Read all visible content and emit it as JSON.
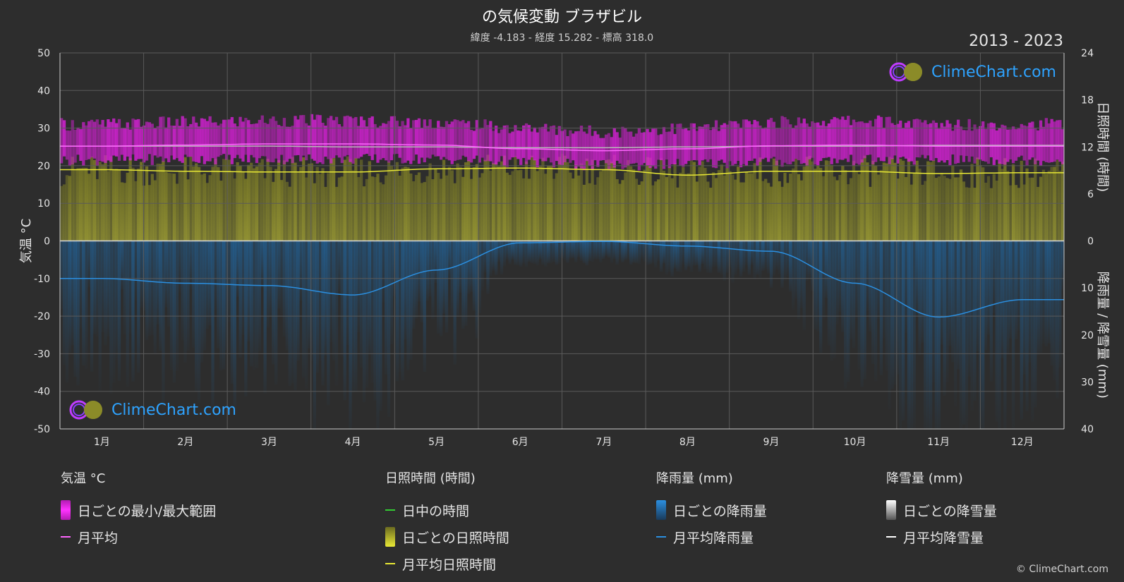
{
  "title": "の気候変動 ブラザビル",
  "subtitle": "緯度 -4.183 - 経度 15.282 - 標高 318.0",
  "years": "2013 - 2023",
  "logo_text": "ClimeChart.com",
  "copyright": "© ClimeChart.com",
  "legend": {
    "temperature": {
      "header": "気温 °C",
      "items": [
        "日ごとの最小/最大範囲",
        "月平均"
      ]
    },
    "sunshine": {
      "header": "日照時間 (時間)",
      "items": [
        "日中の時間",
        "日ごとの日照時間",
        "月平均日照時間"
      ]
    },
    "rain": {
      "header": "降雨量 (mm)",
      "items": [
        "日ごとの降雨量",
        "月平均降雨量"
      ]
    },
    "snow": {
      "header": "降雪量 (mm)",
      "items": [
        "日ごとの降雪量",
        "月平均降雪量"
      ]
    }
  },
  "colors": {
    "background": "#2d2d2d",
    "temp_range": "#e020e0",
    "temp_mean": "#ff66ff",
    "daylight": "#33cc33",
    "sunshine_fill": "#8f8f2a",
    "sunshine_mean": "#e8e835",
    "rain_fill": "#1f6fb2",
    "rain_mean": "#2b8fe0",
    "snow": "#ffffff"
  },
  "chart_data": {
    "type": "line",
    "months": [
      "1月",
      "2月",
      "3月",
      "4月",
      "5月",
      "6月",
      "7月",
      "8月",
      "9月",
      "10月",
      "11月",
      "12月"
    ],
    "axes": {
      "left": {
        "label": "気温 °C",
        "ylim": [
          -50,
          50
        ],
        "ticks": [
          "50",
          "40",
          "30",
          "20",
          "10",
          "0",
          "-10",
          "-20",
          "-30",
          "-40",
          "-50"
        ]
      },
      "right_top": {
        "label": "日照時間 (時間)",
        "ylim": [
          0,
          24
        ],
        "ticks": [
          "24",
          "18",
          "12",
          "6",
          "0"
        ]
      },
      "right_bottom": {
        "label": "降雨量 / 降雪量 (mm)",
        "ylim": [
          0,
          40
        ],
        "ticks": [
          "0",
          "10",
          "20",
          "30",
          "40"
        ]
      }
    },
    "grid": true,
    "series": [
      {
        "name": "日ごとの最小/最大範囲",
        "kind": "band",
        "min": [
          21.5,
          21.8,
          21.8,
          21.8,
          21.8,
          21,
          20,
          20.5,
          21,
          21.5,
          21.5,
          21.5
        ],
        "max": [
          31,
          31.5,
          32,
          32,
          31.5,
          30,
          29,
          30,
          31.5,
          32,
          31,
          31
        ]
      },
      {
        "name": "日中の時間",
        "values": [
          12.1,
          12.1,
          12.1,
          12.0,
          12.0,
          11.9,
          11.9,
          12.0,
          12.1,
          12.1,
          12.2,
          12.2
        ]
      },
      {
        "name": "月平均",
        "values": [
          25.2,
          25.5,
          25.8,
          25.8,
          25.5,
          24.5,
          24.0,
          24.5,
          25.3,
          25.5,
          25.2,
          25.2
        ]
      },
      {
        "name": "月平均日照時間",
        "values": [
          9.1,
          8.9,
          8.8,
          8.8,
          9.2,
          9.3,
          9.1,
          8.4,
          8.9,
          8.9,
          8.6,
          8.7
        ]
      },
      {
        "name": "月平均降雨量",
        "values": [
          8.0,
          9.0,
          9.5,
          11.5,
          6.2,
          0.4,
          0.1,
          1.1,
          2.2,
          9.0,
          16.2,
          12.5
        ]
      }
    ]
  }
}
